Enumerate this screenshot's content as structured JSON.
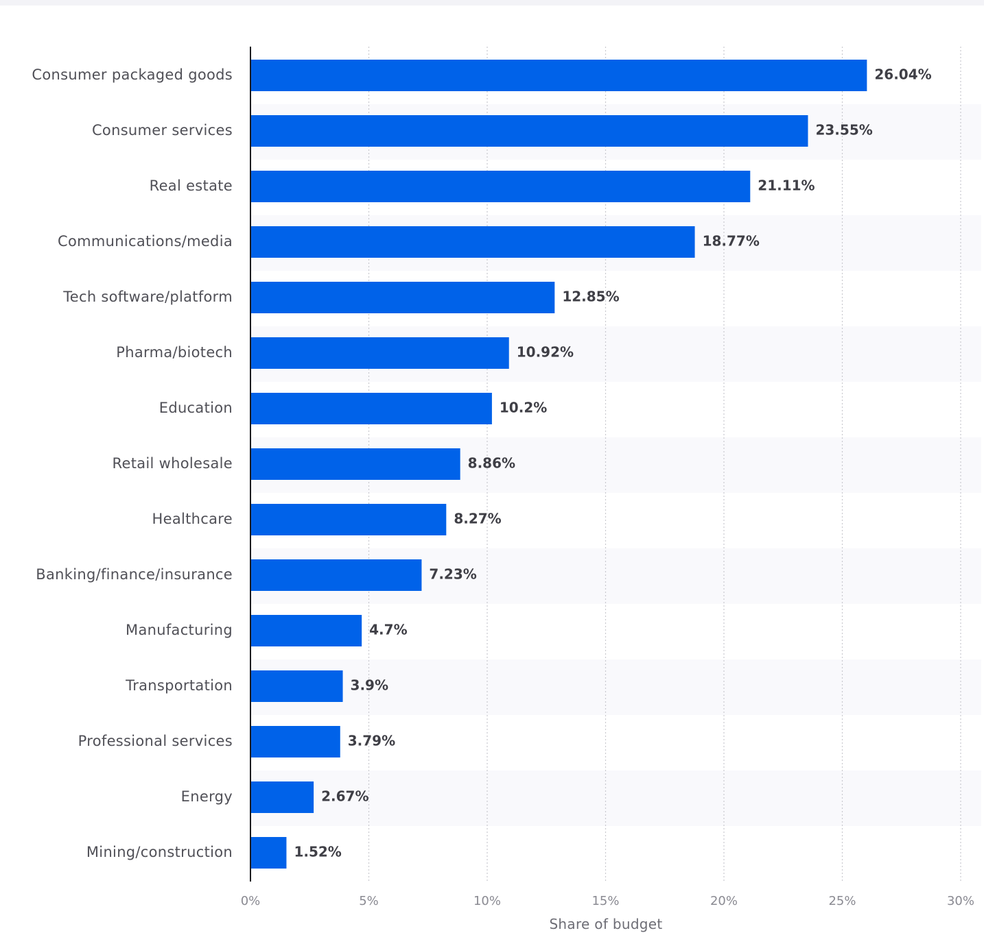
{
  "chart_data": {
    "type": "bar",
    "orientation": "horizontal",
    "categories": [
      "Consumer packaged goods",
      "Consumer services",
      "Real estate",
      "Communications/media",
      "Tech software/platform",
      "Pharma/biotech",
      "Education",
      "Retail wholesale",
      "Healthcare",
      "Banking/finance/insurance",
      "Manufacturing",
      "Transportation",
      "Professional services",
      "Energy",
      "Mining/construction"
    ],
    "values": [
      26.04,
      23.55,
      21.11,
      18.77,
      12.85,
      10.92,
      10.2,
      8.86,
      8.27,
      7.23,
      4.7,
      3.9,
      3.79,
      2.67,
      1.52
    ],
    "value_labels": [
      "26.04%",
      "23.55%",
      "21.11%",
      "18.77%",
      "12.85%",
      "10.92%",
      "10.2%",
      "8.86%",
      "8.27%",
      "7.23%",
      "4.7%",
      "3.9%",
      "3.79%",
      "2.67%",
      "1.52%"
    ],
    "xlim": [
      0,
      30
    ],
    "x_ticks": [
      0,
      5,
      10,
      15,
      20,
      25,
      30
    ],
    "x_tick_labels": [
      "0%",
      "5%",
      "10%",
      "15%",
      "20%",
      "25%",
      "30%"
    ],
    "xlabel": "Share of budget",
    "ylabel": "",
    "title": "",
    "grid": "vertical dotted",
    "bar_color": "#0062e9",
    "band_color": "#f9f9fc"
  }
}
